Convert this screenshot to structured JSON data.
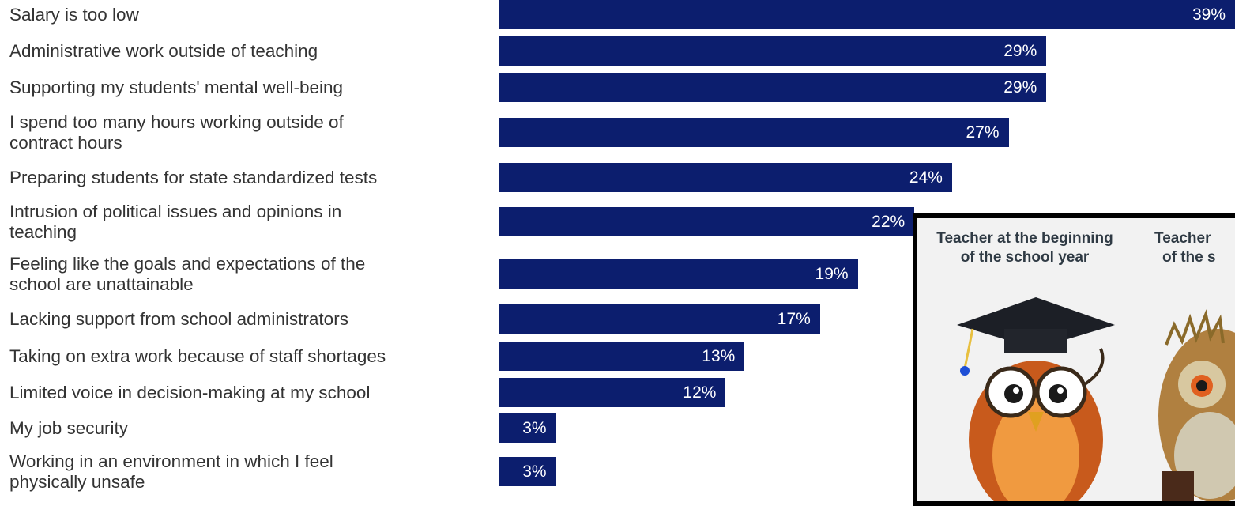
{
  "chart_data": {
    "type": "bar",
    "orientation": "horizontal",
    "categories": [
      "Salary is too low",
      "Administrative work outside of teaching",
      "Supporting my students' mental well-being",
      "I spend too many hours working outside of contract hours",
      "Preparing students for state standardized tests",
      "Intrusion of political issues and opinions in teaching",
      "Feeling like the goals and expectations of the school are unattainable",
      "Lacking support from school administrators",
      "Taking on extra work because of staff shortages",
      "Limited voice in decision-making at my school",
      "My job security",
      "Working in an environment in which I feel physically unsafe"
    ],
    "category_lines": [
      [
        "Salary is too low"
      ],
      [
        "Administrative work outside of teaching"
      ],
      [
        "Supporting my students' mental well-being"
      ],
      [
        "I spend too many hours working outside of",
        "contract hours"
      ],
      [
        "Preparing students for state standardized tests"
      ],
      [
        "Intrusion of political issues and opinions in",
        "teaching"
      ],
      [
        "Feeling like the goals and expectations of the",
        "school are unattainable"
      ],
      [
        "Lacking support from school administrators"
      ],
      [
        "Taking on extra work because of staff shortages"
      ],
      [
        "Limited voice in decision-making at my school"
      ],
      [
        "My job security"
      ],
      [
        "Working in an environment in which I feel",
        "physically unsafe"
      ]
    ],
    "values": [
      39,
      29,
      29,
      27,
      24,
      22,
      19,
      17,
      13,
      12,
      3,
      3
    ],
    "value_labels": [
      "39%",
      "29%",
      "29%",
      "27%",
      "24%",
      "22%",
      "19%",
      "17%",
      "13%",
      "12%",
      "3%",
      "3%"
    ],
    "unit": "%",
    "xlim": [
      0,
      39
    ],
    "bar_color": "#0c1e6e",
    "label_color": "#333333",
    "value_label_color": "#ffffff",
    "grid": false,
    "legend": "none"
  },
  "meme": {
    "caption_left": "Teacher at the beginning of the school year",
    "caption_right": "Teacher at the end of the school year",
    "visible_caption_left_lines": [
      "Teacher at the beginning",
      "of the school year"
    ],
    "visible_caption_right_lines": [
      "Teacher",
      "of the s"
    ],
    "left_icon": "owl-graduate-icon",
    "right_icon": "frazzled-owl-icon"
  }
}
